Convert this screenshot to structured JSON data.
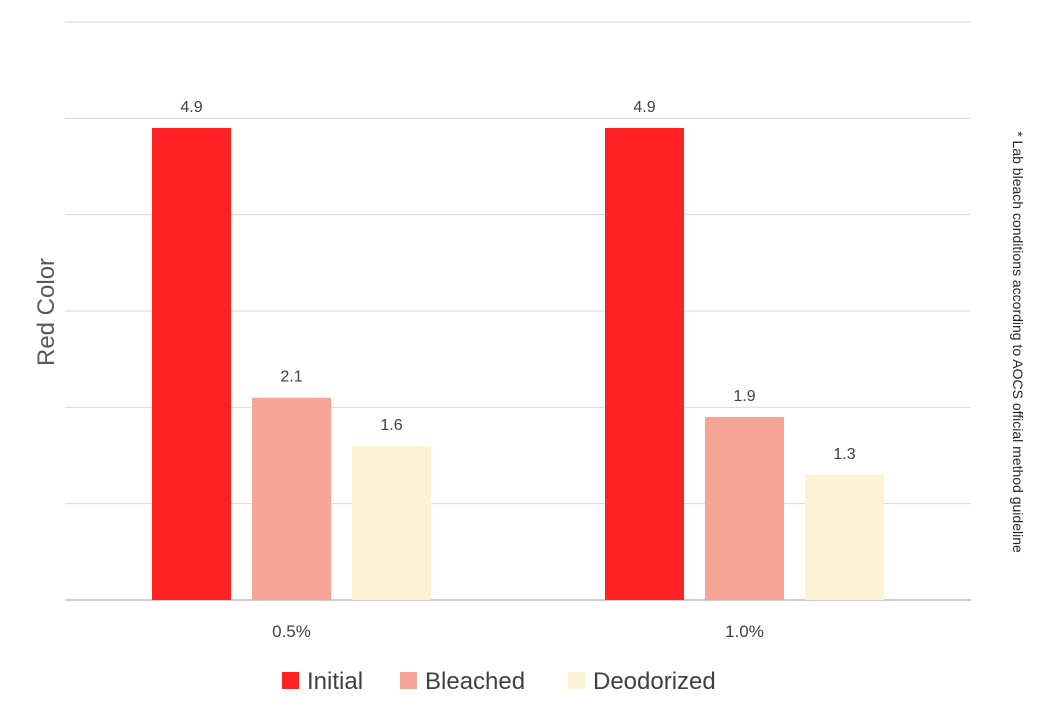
{
  "chart_data": {
    "type": "bar",
    "categories": [
      "0.5%",
      "1.0%"
    ],
    "series": [
      {
        "name": "Initial",
        "values": [
          4.9,
          4.9
        ],
        "color": "#ff2222"
      },
      {
        "name": "Bleached",
        "values": [
          2.1,
          1.9
        ],
        "color": "#f7a597"
      },
      {
        "name": "Deodorized",
        "values": [
          1.6,
          1.3
        ],
        "color": "#fef2d4"
      }
    ],
    "ylabel": "Red Color",
    "xlabel": "",
    "ylim": [
      0,
      6
    ],
    "grid": true,
    "legend_position": "bottom",
    "side_note": "* Lab bleach conditions according to AOCS official method guideline"
  }
}
